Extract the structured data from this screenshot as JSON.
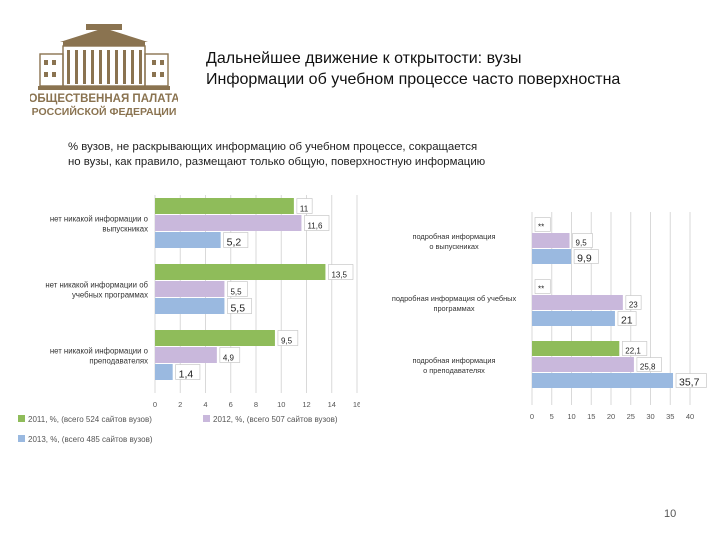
{
  "logo": {
    "line1": "ОБЩЕСТВЕННАЯ ПАЛАТА",
    "line2": "РОССИЙСКОЙ ФЕДЕРАЦИИ",
    "color": "#8a7350"
  },
  "header": {
    "line1": "Дальнейшее движение к открытости: вузы",
    "line2": "Информации об учебном процессе часто поверхностна"
  },
  "subtitle": {
    "line1": "% вузов, не раскрывающих информацию об учебном процессе, сокращается",
    "line2": "но вузы, как правило, размещают только общую, поверхностную информацию"
  },
  "colors": {
    "s2011": "#8fbc5a",
    "s2012": "#c9b8dc",
    "s2013": "#9ab9e0",
    "grid": "#d9d9d9"
  },
  "page_number": "10",
  "chart_data": [
    {
      "type": "bar",
      "orientation": "horizontal",
      "categories": [
        "нет никакой информации о выпускниках",
        "нет никакой информации об учебных программах",
        "нет никакой информации о преподавателях"
      ],
      "series": [
        {
          "name": "2011, %, (всего 524 сайтов вузов)",
          "values": [
            11,
            13.5,
            9.5
          ],
          "labels": [
            "11",
            "13,5",
            "9,5"
          ]
        },
        {
          "name": "2012, %, (всего 507 сайтов вузов)",
          "values": [
            11.6,
            5.5,
            4.9
          ],
          "labels": [
            "11,6",
            "5,5",
            "4,9"
          ]
        },
        {
          "name": "2013, %, (всего 485 сайтов вузов)",
          "values": [
            5.2,
            5.5,
            1.4
          ],
          "labels": [
            "5,2",
            "5,5",
            "1,4"
          ]
        }
      ],
      "xlim": [
        0,
        16
      ],
      "xticks": [
        "0",
        "2",
        "4",
        "6",
        "8",
        "10",
        "12",
        "14",
        "16"
      ],
      "grid": true,
      "legend": "bottom"
    },
    {
      "type": "bar",
      "orientation": "horizontal",
      "categories": [
        "подробная информация о выпускниках",
        "подробная информация об учебных программах",
        "подробная информация о преподавателях"
      ],
      "series": [
        {
          "name": "2011",
          "values": [
            null,
            null,
            22.1
          ],
          "labels": [
            "**",
            "**",
            "22,1"
          ]
        },
        {
          "name": "2012",
          "values": [
            9.5,
            23,
            25.8
          ],
          "labels": [
            "9,5",
            "23",
            "25,8"
          ]
        },
        {
          "name": "2013",
          "values": [
            9.9,
            21,
            35.7
          ],
          "labels": [
            "9,9",
            "21",
            "35,7"
          ]
        }
      ],
      "xlim": [
        0,
        40
      ],
      "xticks": [
        "0",
        "5",
        "10",
        "15",
        "20",
        "25",
        "30",
        "35",
        "40"
      ],
      "grid": true
    }
  ]
}
